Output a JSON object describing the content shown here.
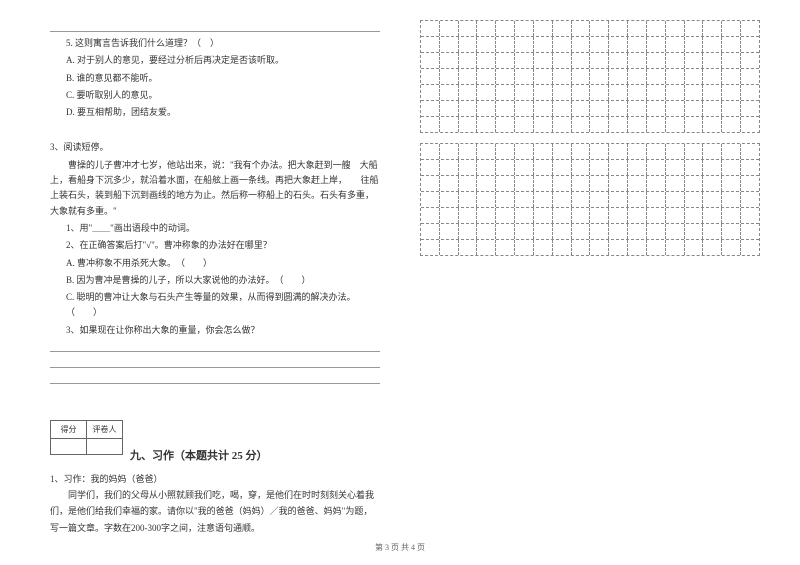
{
  "q5": {
    "title": "5. 这则寓言告诉我们什么道理？（　）",
    "optA": "A. 对于别人的意见，要经过分析后再决定是否该听取。",
    "optB": "B. 谁的意见都不能听。",
    "optC": "C. 要听取别人的意见。",
    "optD": "D. 要互相帮助，团结友爱。"
  },
  "q3": {
    "title": "3、阅读短停。",
    "para1": "　　曹操的儿子曹冲才七岁，他站出来，说：\"我有个办法。把大象赶到一艘　大船上，看船身下沉多少，就沿着水面，在船舷上画一条线。再把大象赶上岸，　　往船上装石头，装到船下沉到画线的地方为止。然后称一称船上的石头。石头有多重，大象就有多重。\"",
    "sub1": "1、用\"＿＿\"画出语段中的动词。",
    "sub2": "2、在正确答案后打\"√\"。曹冲称象的办法好在哪里？",
    "sub2A": "A. 曹冲称象不用杀死大象。　（　　）",
    "sub2B": "B. 因为曹冲是曹操的儿子，所以大家说他的办法好。　（　　）",
    "sub2C": "C. 聪明的曹冲让大象与石头产生等量的效果，从而得到圆满的解决办法。（　　）",
    "sub3": "3、如果现在让你称出大象的重量，你会怎么做？"
  },
  "section9": {
    "header1": "得分",
    "header2": "评卷人",
    "title": "九、习作（本题共计 25 分）",
    "prompt_title": "1、习作：我的妈妈（爸爸）",
    "prompt_body": "　　同学们，我们的父母从小照就顾我们吃，喝，穿，是他们在时时刻刻关心着我们，是他们给我们幸福的家。请你以\"我的爸爸（妈妈）／我的爸爸、妈妈\"为题，写一篇文章。字数在200-300字之间，注意语句通顺。"
  },
  "grid": {
    "sections": 2,
    "rows_per_section": 7,
    "cols": 18
  },
  "footer": "第 3 页  共 4 页",
  "colors": {
    "text": "#333333",
    "border": "#666666",
    "dash": "#888888",
    "bg": "#ffffff"
  }
}
